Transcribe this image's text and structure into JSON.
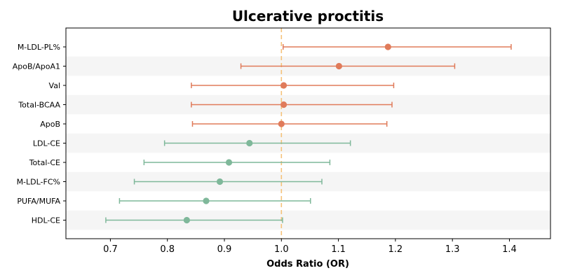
{
  "chart_data": {
    "type": "scatter",
    "title": "Ulcerative proctitis",
    "xlabel": "Odds Ratio (OR)",
    "ylabel": "",
    "xlim": [
      0.622,
      1.472
    ],
    "xticks": [
      0.7,
      0.8,
      0.9,
      1.0,
      1.1,
      1.2,
      1.3,
      1.4
    ],
    "xtick_labels": [
      "0.7",
      "0.8",
      "0.9",
      "1.0",
      "1.1",
      "1.2",
      "1.3",
      "1.4"
    ],
    "reference_line": 1.0,
    "grid": false,
    "colors": {
      "risk": "#e07b5a",
      "protective": "#7fb89a",
      "reference": "#f5c27a",
      "band": "#f5f5f5"
    },
    "rows": [
      {
        "label": "M-LDL-PL%",
        "or": 1.187,
        "lower": 1.003,
        "upper": 1.403,
        "group": "risk"
      },
      {
        "label": "ApoB/ApoA1",
        "or": 1.101,
        "lower": 0.929,
        "upper": 1.304,
        "group": "risk"
      },
      {
        "label": "Val",
        "or": 1.004,
        "lower": 0.842,
        "upper": 1.197,
        "group": "risk"
      },
      {
        "label": "Total-BCAA",
        "or": 1.004,
        "lower": 0.842,
        "upper": 1.194,
        "group": "risk"
      },
      {
        "label": "ApoB",
        "or": 1.0,
        "lower": 0.844,
        "upper": 1.185,
        "group": "risk"
      },
      {
        "label": "LDL-CE",
        "or": 0.944,
        "lower": 0.795,
        "upper": 1.121,
        "group": "protective"
      },
      {
        "label": "Total-CE",
        "or": 0.908,
        "lower": 0.759,
        "upper": 1.085,
        "group": "protective"
      },
      {
        "label": "M-LDL-FC%",
        "or": 0.892,
        "lower": 0.742,
        "upper": 1.071,
        "group": "protective"
      },
      {
        "label": "PUFA/MUFA",
        "or": 0.868,
        "lower": 0.716,
        "upper": 1.051,
        "group": "protective"
      },
      {
        "label": "HDL-CE",
        "or": 0.834,
        "lower": 0.692,
        "upper": 1.002,
        "group": "protective"
      }
    ]
  }
}
